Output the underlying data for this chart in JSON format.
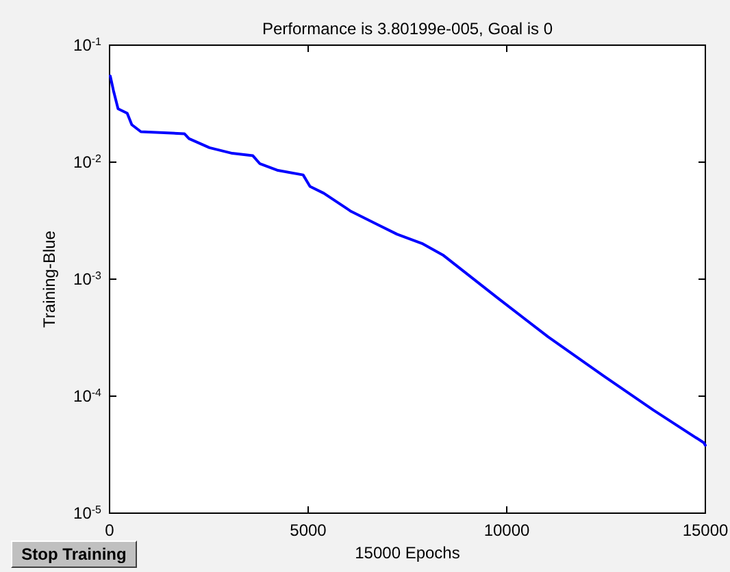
{
  "chart_data": {
    "type": "line",
    "title": "Performance is 3.80199e-005, Goal is 0",
    "xlabel": "15000 Epochs",
    "ylabel": "Training-Blue",
    "log": "y",
    "grid": false,
    "marker": "none",
    "line_style": "solid",
    "xlim": [
      0,
      15000
    ],
    "xticks": [
      0,
      5000,
      10000,
      15000
    ],
    "ylim": [
      1e-05,
      0.1
    ],
    "yticks": [
      {
        "value": 0.1,
        "label": "10$^{-1}$"
      },
      {
        "value": 0.01,
        "label": "10$^{-2}$"
      },
      {
        "value": 0.001,
        "label": "10$^{-3}$"
      },
      {
        "value": 0.0001,
        "label": "10$^{-4}$"
      },
      {
        "value": 1e-05,
        "label": "10$^{-5}$"
      }
    ],
    "annotations": [
      "Stop Training"
    ],
    "series": [
      {
        "color": "#0000ff",
        "x": [
          17,
          97,
          214,
          444,
          559,
          788,
          1884,
          2000,
          2516,
          3090,
          3608,
          3780,
          4240,
          4873,
          5046,
          5392,
          6083,
          6774,
          7240,
          7866,
          8392,
          9774,
          11043,
          12425,
          13692,
          14960,
          15000
        ],
        "values": [
          0.0546,
          0.041,
          0.0286,
          0.0262,
          0.0209,
          0.0182,
          0.0175,
          0.0159,
          0.0133,
          0.0119,
          0.01135,
          0.00973,
          0.0085,
          0.00778,
          0.0062,
          0.00543,
          0.00379,
          0.0029,
          0.00242,
          0.00202,
          0.00161,
          0.00069,
          0.000321,
          0.00015,
          7.6e-05,
          4e-05,
          3.8e-05
        ]
      }
    ]
  }
}
